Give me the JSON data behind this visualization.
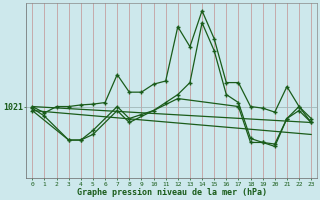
{
  "title": "Graphe pression niveau de la mer (hPa)",
  "x_ticks": [
    0,
    1,
    2,
    3,
    4,
    5,
    6,
    7,
    8,
    9,
    10,
    11,
    12,
    13,
    14,
    15,
    16,
    17,
    18,
    19,
    20,
    21,
    22,
    23
  ],
  "ytick_value": 1021,
  "ylim": [
    1012,
    1034
  ],
  "xlim": [
    -0.5,
    23.5
  ],
  "bg_color": "#cde8ec",
  "vgrid_color": "#c4a0a0",
  "hgrid_color": "#a0b8b8",
  "line_color": "#1a5c1a",
  "line1_x": [
    0,
    1,
    2,
    3,
    4,
    5,
    6,
    7,
    8,
    9,
    10,
    11,
    12,
    13,
    14,
    15,
    16,
    17,
    18,
    19,
    20,
    21,
    22,
    23
  ],
  "line1_y": [
    1021.0,
    1020.2,
    1021.0,
    1021.0,
    1021.2,
    1021.3,
    1021.5,
    1025.0,
    1022.8,
    1022.8,
    1023.8,
    1024.2,
    1031.0,
    1028.5,
    1033.0,
    1029.5,
    1024.0,
    1024.0,
    1021.0,
    1020.8,
    1020.3,
    1023.5,
    1021.0,
    1019.5
  ],
  "line2_x": [
    0,
    1,
    3,
    4,
    5,
    7,
    8,
    9,
    10,
    11,
    12,
    13,
    14,
    15,
    16,
    17,
    18,
    19,
    20,
    21,
    22,
    23
  ],
  "line2_y": [
    1020.8,
    1019.8,
    1016.8,
    1016.8,
    1018.0,
    1021.0,
    1019.5,
    1020.0,
    1020.5,
    1021.5,
    1022.5,
    1024.0,
    1031.5,
    1028.0,
    1022.5,
    1021.5,
    1017.0,
    1016.5,
    1016.3,
    1019.5,
    1021.0,
    1019.0
  ],
  "line3_x": [
    0,
    3,
    4,
    5,
    7,
    8,
    12,
    17,
    18,
    19,
    20,
    21,
    22,
    23
  ],
  "line3_y": [
    1020.5,
    1016.8,
    1016.8,
    1017.5,
    1020.5,
    1019.0,
    1022.0,
    1021.0,
    1016.5,
    1016.5,
    1016.0,
    1019.5,
    1020.5,
    1019.0
  ],
  "line4_x": [
    0,
    23
  ],
  "line4_y": [
    1021.0,
    1019.0
  ],
  "line5_x": [
    0,
    23
  ],
  "line5_y": [
    1020.5,
    1017.5
  ]
}
